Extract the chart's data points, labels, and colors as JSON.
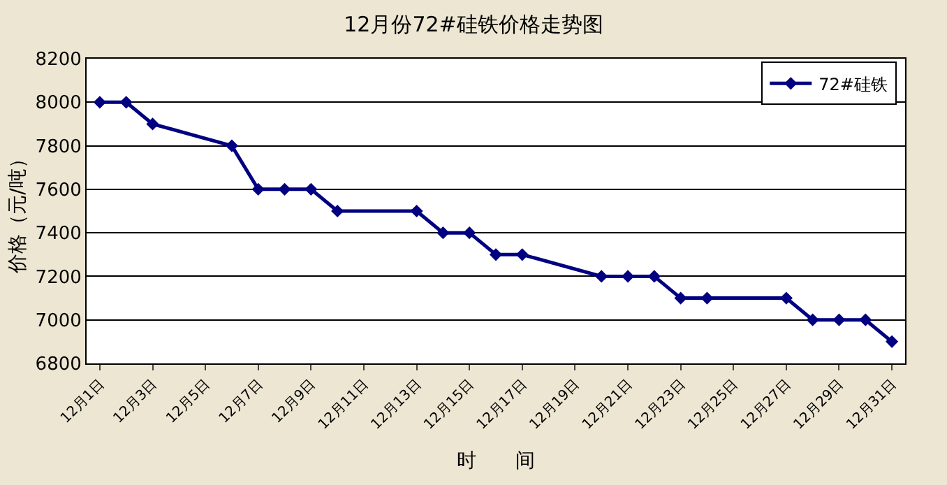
{
  "chart_data": {
    "type": "line",
    "title": "12月份72#硅铁价格走势图",
    "xlabel": "时　　间",
    "ylabel": "价格（元/吨）",
    "categories": [
      "12月1日",
      null,
      "12月3日",
      null,
      "12月5日",
      null,
      "12月7日",
      null,
      "12月9日",
      null,
      "12月11日",
      null,
      "12月13日",
      null,
      "12月15日",
      null,
      "12月17日",
      null,
      "12月19日",
      null,
      "12月21日",
      null,
      "12月23日",
      null,
      "12月25日",
      null,
      "12月27日",
      null,
      "12月29日",
      null,
      "12月31日"
    ],
    "series": [
      {
        "name": "72#硅铁",
        "color": "#000080",
        "values": [
          8000,
          8000,
          7900,
          null,
          null,
          7800,
          7600,
          7600,
          7600,
          7500,
          null,
          null,
          7500,
          7400,
          7400,
          7300,
          7300,
          null,
          null,
          7200,
          7200,
          7200,
          7100,
          7100,
          null,
          null,
          7100,
          7000,
          7000,
          7000,
          6900
        ]
      }
    ],
    "ylim": [
      6800,
      8200
    ],
    "yticks": [
      6800,
      7000,
      7200,
      7400,
      7600,
      7800,
      8000,
      8200
    ],
    "grid": "y",
    "legend": "top right",
    "marker": "diamond",
    "line_style": "solid"
  }
}
